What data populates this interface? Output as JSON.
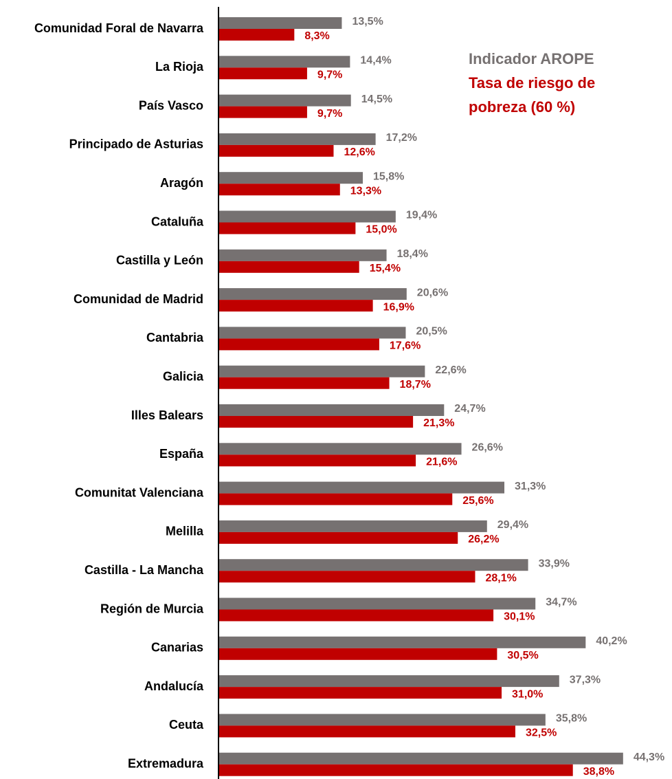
{
  "chart_data": {
    "type": "barh",
    "categories": [
      "Comunidad Foral de Navarra",
      "La Rioja",
      "País Vasco",
      "Principado de Asturias",
      "Aragón",
      "Cataluña",
      "Castilla y León",
      "Comunidad de Madrid",
      "Cantabria",
      "Galicia",
      "Illes Balears",
      "España",
      "Comunitat Valenciana",
      "Melilla",
      "Castilla - La Mancha",
      "Región de Murcia",
      "Canarias",
      "Andalucía",
      "Ceuta",
      "Extremadura"
    ],
    "series": [
      {
        "name": "Indicador AROPE",
        "color": "#767171",
        "values": [
          13.5,
          14.4,
          14.5,
          17.2,
          15.8,
          19.4,
          18.4,
          20.6,
          20.5,
          22.6,
          24.7,
          26.6,
          31.3,
          29.4,
          33.9,
          34.7,
          40.2,
          37.3,
          35.8,
          44.3
        ],
        "value_labels": [
          "13,5%",
          "14,4%",
          "14,5%",
          "17,2%",
          "15,8%",
          "19,4%",
          "18,4%",
          "20,6%",
          "20,5%",
          "22,6%",
          "24,7%",
          "26,6%",
          "31,3%",
          "29,4%",
          "33,9%",
          "34,7%",
          "40,2%",
          "37,3%",
          "35,8%",
          "44,3%"
        ]
      },
      {
        "name": "Tasa de riesgo de pobreza (60 %)",
        "color": "#c00000",
        "values": [
          8.3,
          9.7,
          9.7,
          12.6,
          13.3,
          15.0,
          15.4,
          16.9,
          17.6,
          18.7,
          21.3,
          21.6,
          25.6,
          26.2,
          28.1,
          30.1,
          30.5,
          31.0,
          32.5,
          38.8
        ],
        "value_labels": [
          "8,3%",
          "9,7%",
          "9,7%",
          "12,6%",
          "13,3%",
          "15,0%",
          "15,4%",
          "16,9%",
          "17,6%",
          "18,7%",
          "21,3%",
          "21,6%",
          "25,6%",
          "26,2%",
          "28,1%",
          "30,1%",
          "30,5%",
          "31,0%",
          "32,5%",
          "38,8%"
        ]
      }
    ],
    "xlim": [
      0,
      48
    ],
    "legend": "top-right"
  }
}
